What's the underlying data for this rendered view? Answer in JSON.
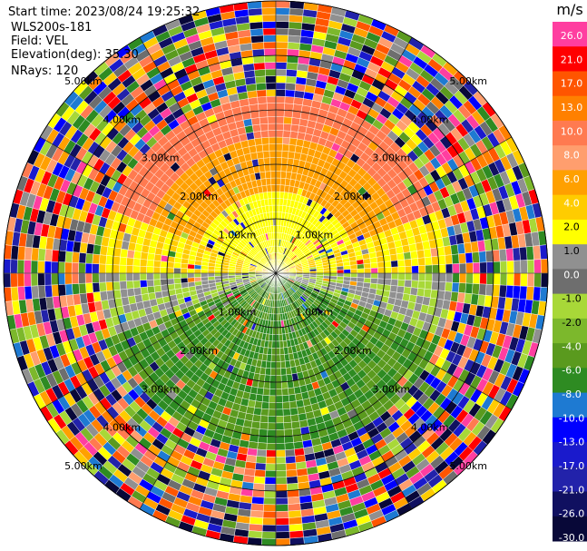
{
  "header": {
    "start_time": "Start time: 2023/08/24 19:25:32",
    "site": "WLS200s-181",
    "field": "Field: VEL",
    "elevation": "Elevation(deg): 35.30",
    "nrays": "NRays: 120"
  },
  "chart_data": {
    "type": "heatmap",
    "projection": "polar PPI",
    "field": "VEL",
    "unit": "m/s",
    "range_ring_labels": [
      "1.00km",
      "2.00km",
      "3.00km",
      "4.00km",
      "5.00km"
    ],
    "colorbar": {
      "ticks": [
        "26.0",
        "21.0",
        "17.0",
        "13.0",
        "10.0",
        "8.0",
        "6.0",
        "4.0",
        "2.0",
        "1.0",
        "0.0",
        "-1.0",
        "-2.0",
        "-4.0",
        "-6.0",
        "-8.0",
        "-10.0",
        "-13.0",
        "-17.0",
        "-21.0",
        "-26.0",
        "-30.0"
      ],
      "colors": [
        "#ff3ea0",
        "#ff0000",
        "#ff5500",
        "#ff8000",
        "#ff7a50",
        "#ff9e6e",
        "#ffa000",
        "#ffcc00",
        "#ffff00",
        "#909090",
        "#6e6e6e",
        "#a8d838",
        "#7cb82c",
        "#5a9a1e",
        "#2e8b22",
        "#1e7ad2",
        "#0000ff",
        "#1a1acc",
        "#2222aa",
        "#101060",
        "#080838"
      ]
    },
    "grid": true
  }
}
